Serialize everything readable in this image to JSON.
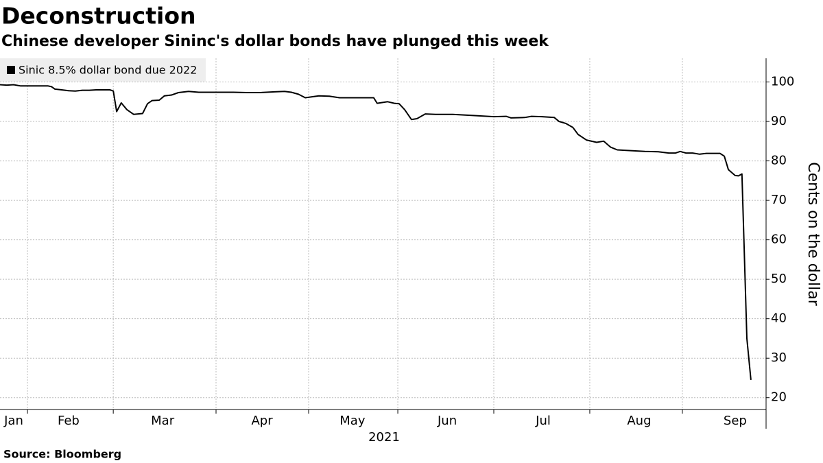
{
  "chart_data": {
    "type": "line",
    "title": "Deconstruction",
    "subtitle": "Chinese developer Sininc's dollar bonds have plunged this week",
    "source": "Source: Bloomberg",
    "x_axis_label": "2021",
    "y_axis_label": "Cents on the dollar",
    "x": [
      0,
      2.2,
      4.4,
      6.7,
      13.3,
      15.6,
      16.7,
      17.8,
      20,
      22.2,
      24.4,
      26.7,
      28.9,
      31.1,
      35.6,
      36.7,
      37.8,
      39.3,
      41.1,
      43.3,
      46.2,
      47.8,
      49.3,
      51.6,
      53.3,
      55.6,
      57.8,
      61.1,
      64.4,
      68.9,
      75.6,
      80,
      84.4,
      88.9,
      92.2,
      94.4,
      96.7,
      98.9,
      103.3,
      106.7,
      110,
      117.8,
      121.1,
      122.2,
      125.6,
      127.8,
      129.3,
      131.1,
      133.3,
      135.1,
      137.8,
      141.1,
      146.7,
      153.3,
      160,
      164,
      165.6,
      170,
      172.2,
      175.6,
      179.6,
      181.1,
      183.3,
      185.6,
      187.3,
      190,
      193.3,
      195.6,
      197.8,
      200,
      204.4,
      208.9,
      213.3,
      216.7,
      218.9,
      220.4,
      222.2,
      224.4,
      226.7,
      228.9,
      233.3,
      234.7,
      236,
      238.2,
      239.3,
      240.4,
      242,
      243.3
    ],
    "series": [
      {
        "name": "Sinic 8.5% dollar bond due 2022",
        "color": "#000000",
        "values": [
          99.3,
          99.2,
          99.3,
          99.0,
          99.0,
          99.0,
          98.8,
          98.2,
          98.0,
          97.8,
          97.7,
          97.9,
          97.9,
          98.0,
          98.0,
          97.7,
          92.5,
          94.7,
          93.0,
          91.8,
          92.0,
          94.5,
          95.3,
          95.4,
          96.5,
          96.7,
          97.3,
          97.6,
          97.4,
          97.4,
          97.4,
          97.3,
          97.3,
          97.5,
          97.6,
          97.4,
          96.9,
          96.0,
          96.5,
          96.4,
          96.0,
          96.0,
          96.0,
          94.6,
          95.0,
          94.6,
          94.5,
          93.0,
          90.5,
          90.7,
          91.9,
          91.8,
          91.8,
          91.5,
          91.2,
          91.3,
          90.9,
          91.0,
          91.3,
          91.2,
          91.0,
          90.0,
          89.5,
          88.5,
          86.7,
          85.3,
          84.7,
          85.0,
          83.5,
          82.8,
          82.6,
          82.4,
          82.3,
          82.0,
          82.0,
          82.4,
          82.0,
          82.0,
          81.7,
          81.9,
          81.9,
          81.2,
          77.8,
          76.3,
          76.2,
          76.7,
          35,
          24.5
        ]
      }
    ],
    "xlim": [
      0,
      246
    ],
    "xticks": [
      {
        "value": 4.4,
        "label": "Jan"
      },
      {
        "value": 22.2,
        "label": "Feb"
      },
      {
        "value": 52.7,
        "label": "Mar"
      },
      {
        "value": 84.9,
        "label": "Apr"
      },
      {
        "value": 114.2,
        "label": "May"
      },
      {
        "value": 144.9,
        "label": "Jun"
      },
      {
        "value": 176,
        "label": "Jul"
      },
      {
        "value": 207.1,
        "label": "Aug"
      },
      {
        "value": 238.2,
        "label": "Sep"
      }
    ],
    "minor_xticks": [
      8.9,
      36.7,
      70,
      100,
      128.9,
      160,
      191.1,
      221.1
    ],
    "ylim": [
      17,
      106
    ],
    "yticks": [
      20,
      30,
      40,
      50,
      60,
      70,
      80,
      90,
      100
    ],
    "grid": true,
    "legend": "top-left"
  }
}
